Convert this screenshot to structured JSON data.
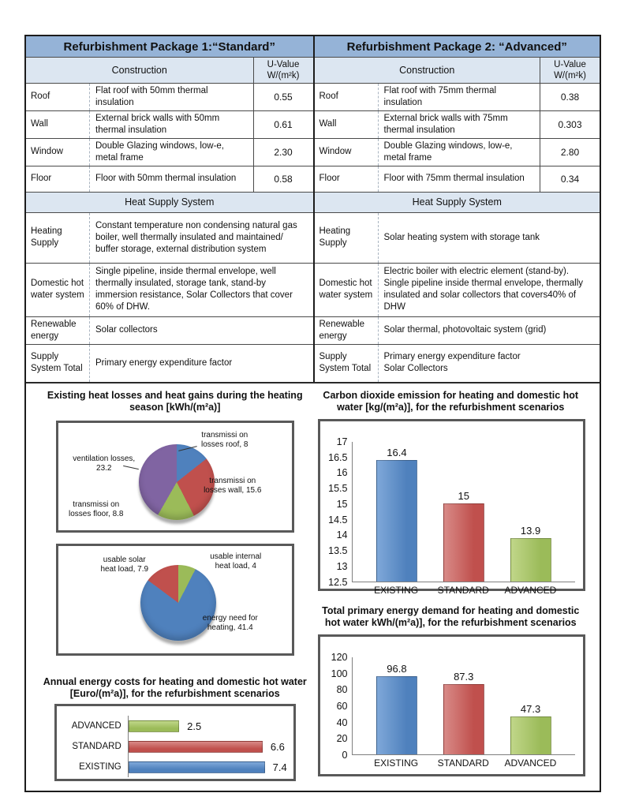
{
  "colors": {
    "blue": "#4F81BD",
    "blue_light": "#7FA8D9",
    "red": "#C0504D",
    "red_light": "#D88A87",
    "green": "#9BBB59",
    "green_light": "#C0D689",
    "purple": "#8064A2",
    "purple_light": "#A58BC4",
    "header_bg": "#95B3D7",
    "subheader_bg": "#DCE6F1"
  },
  "packages": [
    {
      "title": "Refurbishment Package 1:“Standard”",
      "construction": {
        "header": "Construction",
        "uvalue_header": "U-Value\nW/(m²k)",
        "rows": [
          {
            "label": "Roof",
            "desc": "Flat roof with 50mm thermal insulation",
            "value": "0.55"
          },
          {
            "label": "Wall",
            "desc": "External brick walls with 50mm thermal insulation",
            "value": "0.61"
          },
          {
            "label": "Window",
            "desc": "Double Glazing windows, low-e, metal frame",
            "value": "2.30"
          },
          {
            "label": "Floor",
            "desc": "Floor with 50mm thermal insulation",
            "value": "0.58"
          }
        ]
      },
      "heat_supply": {
        "header": "Heat Supply System",
        "rows": [
          {
            "label": "Heating Supply",
            "desc": "Constant temperature non condensing natural gas boiler, well thermally insulated and maintained/ buffer storage, external distribution system"
          },
          {
            "label": "Domestic hot water system",
            "desc": "Single pipeline, inside thermal envelope, well thermally insulated, storage tank, stand-by immersion resistance, Solar Collectors that cover 60% of DHW."
          },
          {
            "label": "Renewable energy",
            "desc": "Solar collectors"
          },
          {
            "label": "Supply System Total",
            "desc": "Primary energy expenditure factor"
          }
        ]
      }
    },
    {
      "title": "Refurbishment Package 2: “Advanced”",
      "construction": {
        "header": "Construction",
        "uvalue_header": "U-Value\nW/(m²k)",
        "rows": [
          {
            "label": "Roof",
            "desc": "Flat roof with 75mm thermal insulation",
            "value": "0.38"
          },
          {
            "label": "Wall",
            "desc": "External brick walls with 75mm thermal insulation",
            "value": "0.303"
          },
          {
            "label": "Window",
            "desc": "Double Glazing windows, low-e, metal frame",
            "value": "2.80"
          },
          {
            "label": "Floor",
            "desc": "Floor with 75mm thermal insulation",
            "value": "0.34"
          }
        ]
      },
      "heat_supply": {
        "header": "Heat Supply System",
        "rows": [
          {
            "label": "Heating Supply",
            "desc": "Solar heating system with storage tank"
          },
          {
            "label": "Domestic hot water system",
            "desc": "Electric boiler with electric element (stand-by). Single pipeline inside thermal envelope, thermally insulated and solar collectors that covers40% of DHW"
          },
          {
            "label": "Renewable energy",
            "desc": "Solar thermal, photovoltaic system (grid)"
          },
          {
            "label": "Supply System Total",
            "desc": "Primary energy expenditure factor\nSolar Collectors"
          }
        ]
      }
    }
  ],
  "chart_data": [
    {
      "type": "pie",
      "title": "Existing heat losses and heat gains during the heating season [kWh/(m²a)]",
      "labels": [
        "transmission losses roof",
        "transmission losses wall",
        "transmission losses floor",
        "ventilation losses"
      ],
      "values": [
        8,
        15.6,
        8.8,
        23.2
      ],
      "colors": [
        "#4F81BD",
        "#C0504D",
        "#9BBB59",
        "#8064A2"
      ],
      "labels_display": [
        "transmissi on losses roof, 8",
        "transmissi on losses wall, 15.6",
        "transmissi on losses floor, 8.8",
        "ventilation losses, 23.2"
      ],
      "legend_position": "data-labels-outside"
    },
    {
      "type": "pie",
      "title": "",
      "labels": [
        "usable internal heat load",
        "energy need for heating",
        "usable solar heat load"
      ],
      "values": [
        4,
        41.4,
        7.9
      ],
      "colors": [
        "#9BBB59",
        "#4F81BD",
        "#C0504D"
      ],
      "labels_display": [
        "usable internal heat load, 4",
        "energy need for heating, 41.4",
        "usable solar heat load, 7.9"
      ],
      "legend_position": "data-labels-outside"
    },
    {
      "type": "bar",
      "title": "Carbon dioxide emission for heating and domestic hot water [kg/(m²a)], for the refurbishment scenarios",
      "categories": [
        "EXISTING",
        "STANDARD",
        "ADVANCED"
      ],
      "values": [
        16.4,
        15,
        13.9
      ],
      "colors": [
        "#4F81BD",
        "#C0504D",
        "#9BBB59"
      ],
      "colors_light": [
        "#7FA8D9",
        "#D88A87",
        "#C0D689"
      ],
      "xlabel": "",
      "ylabel": "",
      "ylim": [
        12.5,
        17
      ],
      "ytick_step": 0.5,
      "grid": false,
      "legend_position": "none"
    },
    {
      "type": "bar-horizontal",
      "title": "Annual energy costs for heating and domestic hot water [Euro/(m²a)], for the refurbishment scenarios",
      "categories": [
        "ADVANCED",
        "STANDARD",
        "EXISTING"
      ],
      "values": [
        2.5,
        6.6,
        7.4
      ],
      "colors": [
        "#9BBB59",
        "#C0504D",
        "#4F81BD"
      ],
      "colors_light": [
        "#C0D689",
        "#D88A87",
        "#7FA8D9"
      ],
      "xlabel": "",
      "ylabel": "",
      "xlim": [
        0,
        7.8
      ],
      "grid": false,
      "legend_position": "none"
    },
    {
      "type": "bar",
      "title": "Total primary energy demand for heating and domestic hot water kWh/(m²a)], for the refurbishment scenarios",
      "categories": [
        "EXISTING",
        "STANDARD",
        "ADVANCED"
      ],
      "values": [
        96.8,
        87.3,
        47.3
      ],
      "colors": [
        "#4F81BD",
        "#C0504D",
        "#9BBB59"
      ],
      "colors_light": [
        "#7FA8D9",
        "#D88A87",
        "#C0D689"
      ],
      "xlabel": "",
      "ylabel": "",
      "ylim": [
        0,
        120
      ],
      "ytick_step": 20,
      "grid": false,
      "legend_position": "none"
    }
  ]
}
